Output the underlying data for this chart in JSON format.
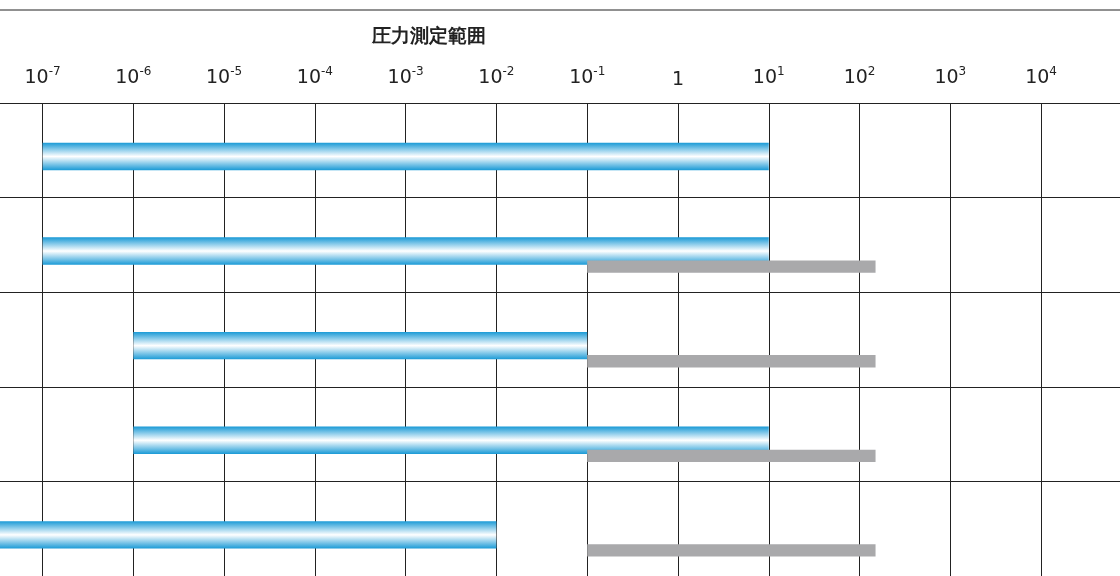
{
  "chart_data": {
    "type": "bar",
    "orientation": "horizontal",
    "title": "圧力測定範囲",
    "categories": [
      null,
      null,
      null,
      null,
      null
    ],
    "series": [
      {
        "color": "#1a9ad6",
        "base": [
          1e-07,
          1e-07,
          1e-06,
          1e-06,
          3.4e-08
        ],
        "values": [
          10,
          10,
          0.1,
          10,
          0.01
        ]
      },
      {
        "color": "#a9a9ab",
        "base": [
          null,
          0.1,
          0.1,
          0.1,
          0.1
        ],
        "values": [
          null,
          150,
          150,
          150,
          150
        ]
      }
    ],
    "log": "x",
    "xlim": [
      3.4e-08,
      74000.0
    ],
    "xticks": [
      {
        "value": 1e-07,
        "label": "10$^{-7}$"
      },
      {
        "value": 1e-06,
        "label": "10$^{-6}$"
      },
      {
        "value": 1e-05,
        "label": "10$^{-5}$"
      },
      {
        "value": 0.0001,
        "label": "10$^{-4}$"
      },
      {
        "value": 0.001,
        "label": "10$^{-3}$"
      },
      {
        "value": 0.01,
        "label": "10$^{-2}$"
      },
      {
        "value": 0.1,
        "label": "10$^{-1}$"
      },
      1,
      {
        "value": 10,
        "label": "10$^{1}$"
      },
      {
        "value": 100,
        "label": "10$^{2}$"
      },
      {
        "value": 1000,
        "label": "10$^{3}$"
      },
      {
        "value": 10000,
        "label": "10$^{4}$"
      }
    ],
    "tick_labels": "x",
    "grid": true
  }
}
